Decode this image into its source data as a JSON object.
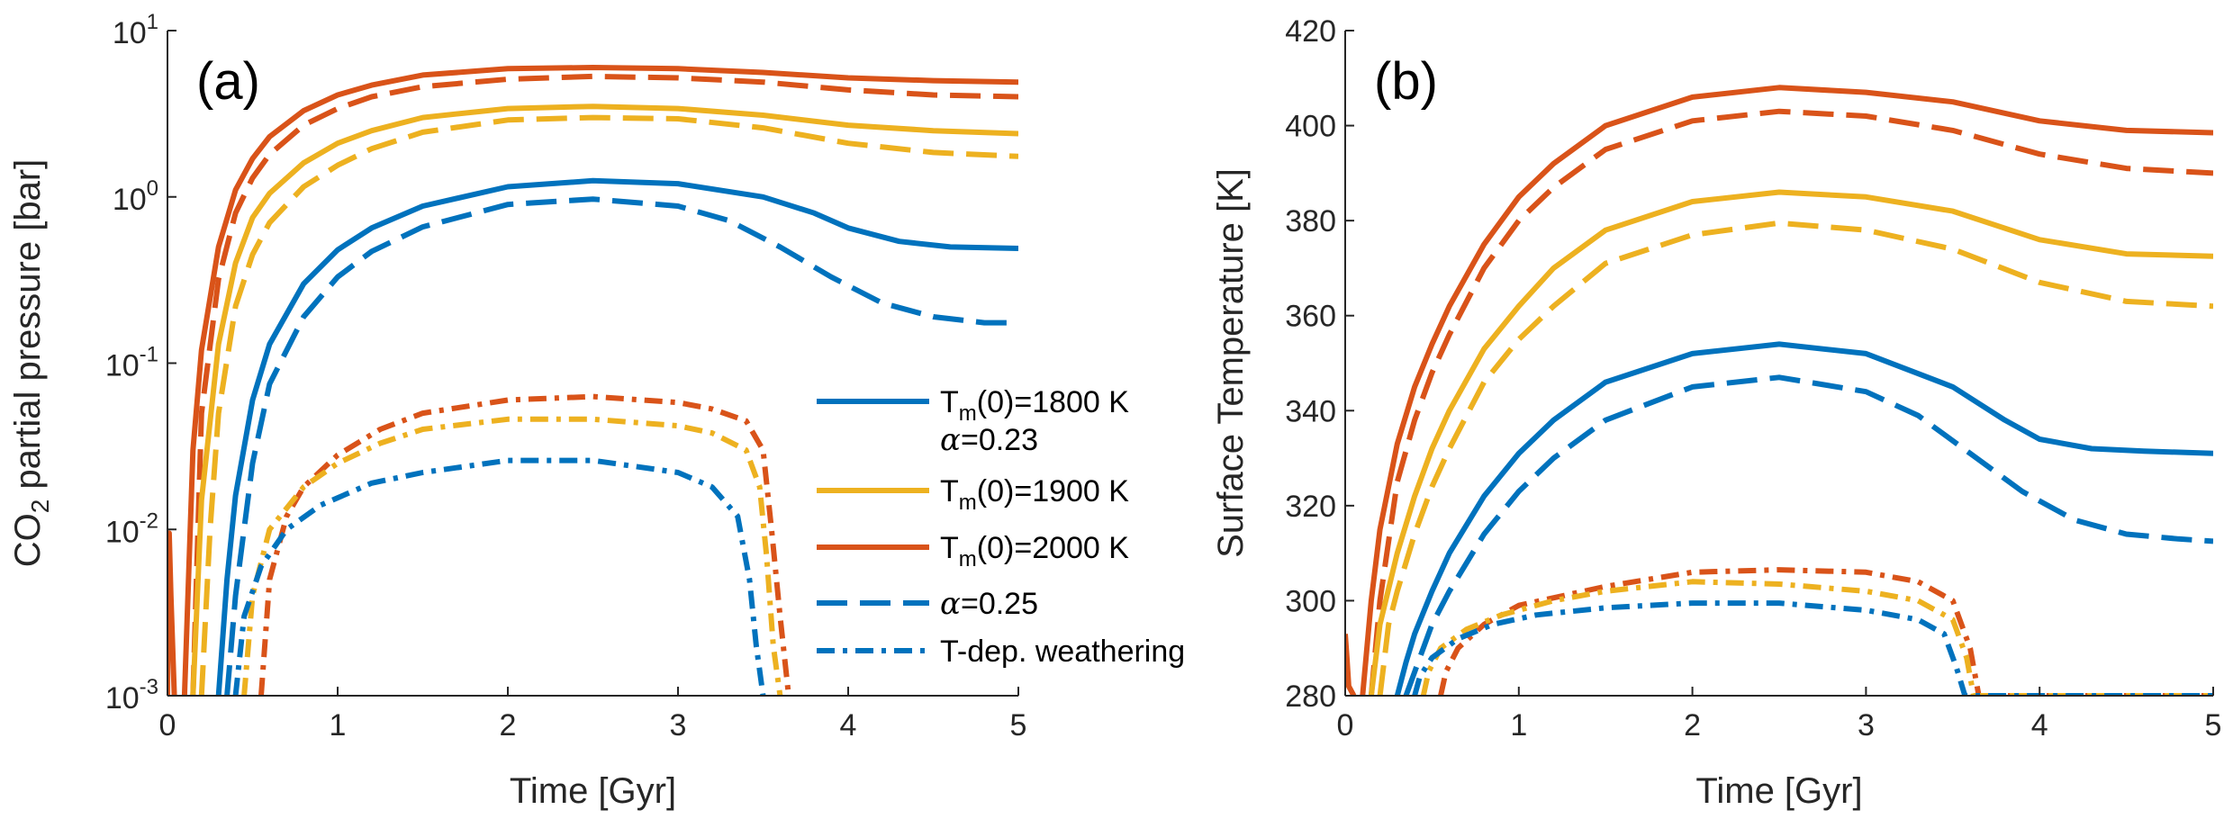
{
  "chart_data": [
    {
      "type": "line",
      "panel_label": "(a)",
      "xlabel": "Time [Gyr]",
      "ylabel": "CO2 partial pressure [bar]",
      "ylabel_main": "CO",
      "ylabel_sub": "2",
      "ylabel_rest": " partial pressure [bar]",
      "xlim": [
        0,
        5
      ],
      "ylim": [
        0.001,
        10
      ],
      "yscale": "log",
      "x_ticks": [
        0,
        1,
        2,
        3,
        4,
        5
      ],
      "x_tick_labels": [
        "0",
        "1",
        "2",
        "3",
        "4",
        "5"
      ],
      "y_ticks": [
        0.001,
        0.01,
        0.1,
        1,
        10
      ],
      "y_tick_labels": [
        {
          "base": "10",
          "exp": "-3"
        },
        {
          "base": "10",
          "exp": "-2"
        },
        {
          "base": "10",
          "exp": "-1"
        },
        {
          "base": "10",
          "exp": "0"
        },
        {
          "base": "10",
          "exp": "1"
        }
      ],
      "legend": {
        "position": "center-right",
        "entries": [
          {
            "style": "solid",
            "color": "#0072BD",
            "lines": [
              {
                "main": "T",
                "sub": "m",
                "rest": "(0)=1800 K"
              },
              {
                "greek": "α",
                "rest": "=0.23"
              }
            ]
          },
          {
            "style": "solid",
            "color": "#EDB120",
            "lines": [
              {
                "main": "T",
                "sub": "m",
                "rest": "(0)=1900 K"
              }
            ]
          },
          {
            "style": "solid",
            "color": "#D95319",
            "lines": [
              {
                "main": "T",
                "sub": "m",
                "rest": "(0)=2000 K"
              }
            ]
          },
          {
            "style": "dashed",
            "color": "#0072BD",
            "lines": [
              {
                "greek": "α",
                "rest": "=0.25"
              }
            ]
          },
          {
            "style": "dashdot",
            "color": "#0072BD",
            "lines": [
              {
                "main": "T-dep. weathering"
              }
            ]
          }
        ]
      },
      "series": [
        {
          "color": "#D95319",
          "style": "solid",
          "x": [
            0.1,
            0.15,
            0.2,
            0.3,
            0.4,
            0.5,
            0.6,
            0.8,
            1.0,
            1.2,
            1.5,
            2.0,
            2.5,
            3.0,
            3.5,
            4.0,
            4.5,
            5.0
          ],
          "y": [
            0.001,
            0.03,
            0.12,
            0.5,
            1.1,
            1.7,
            2.3,
            3.3,
            4.1,
            4.7,
            5.4,
            5.9,
            6.0,
            5.9,
            5.6,
            5.2,
            5.0,
            4.9
          ]
        },
        {
          "color": "#D95319",
          "style": "dashed",
          "x": [
            0.15,
            0.2,
            0.3,
            0.4,
            0.5,
            0.6,
            0.8,
            1.0,
            1.2,
            1.5,
            2.0,
            2.5,
            3.0,
            3.5,
            4.0,
            4.5,
            5.0
          ],
          "y": [
            0.001,
            0.05,
            0.32,
            0.8,
            1.3,
            1.8,
            2.7,
            3.4,
            4.0,
            4.6,
            5.1,
            5.3,
            5.2,
            4.9,
            4.4,
            4.1,
            4.0
          ]
        },
        {
          "color": "#EDB120",
          "style": "solid",
          "x": [
            0.15,
            0.2,
            0.3,
            0.4,
            0.5,
            0.6,
            0.8,
            1.0,
            1.2,
            1.5,
            2.0,
            2.5,
            3.0,
            3.5,
            4.0,
            4.5,
            5.0
          ],
          "y": [
            0.001,
            0.015,
            0.13,
            0.4,
            0.75,
            1.05,
            1.6,
            2.1,
            2.5,
            3.0,
            3.4,
            3.5,
            3.4,
            3.1,
            2.7,
            2.5,
            2.4
          ]
        },
        {
          "color": "#EDB120",
          "style": "dashed",
          "x": [
            0.2,
            0.25,
            0.3,
            0.4,
            0.5,
            0.6,
            0.8,
            1.0,
            1.2,
            1.5,
            2.0,
            2.5,
            3.0,
            3.5,
            4.0,
            4.5,
            5.0
          ],
          "y": [
            0.001,
            0.01,
            0.05,
            0.22,
            0.45,
            0.7,
            1.15,
            1.55,
            1.95,
            2.45,
            2.9,
            3.0,
            2.95,
            2.6,
            2.1,
            1.85,
            1.75
          ]
        },
        {
          "color": "#0072BD",
          "style": "solid",
          "x": [
            0.3,
            0.35,
            0.4,
            0.5,
            0.6,
            0.8,
            1.0,
            1.2,
            1.5,
            2.0,
            2.5,
            3.0,
            3.5,
            3.8,
            4.0,
            4.3,
            4.6,
            5.0
          ],
          "y": [
            0.001,
            0.005,
            0.016,
            0.06,
            0.13,
            0.3,
            0.48,
            0.65,
            0.88,
            1.15,
            1.25,
            1.2,
            1.0,
            0.8,
            0.65,
            0.54,
            0.5,
            0.49
          ]
        },
        {
          "color": "#0072BD",
          "style": "dashed",
          "x": [
            0.35,
            0.4,
            0.5,
            0.6,
            0.8,
            1.0,
            1.2,
            1.5,
            2.0,
            2.5,
            3.0,
            3.3,
            3.6,
            3.9,
            4.2,
            4.5,
            4.8,
            5.0
          ],
          "y": [
            0.001,
            0.004,
            0.025,
            0.075,
            0.19,
            0.33,
            0.47,
            0.66,
            0.9,
            0.97,
            0.88,
            0.72,
            0.5,
            0.33,
            0.23,
            0.19,
            0.175,
            0.175
          ]
        },
        {
          "color": "#D95319",
          "style": "solid",
          "x": [
            0.0,
            0.005,
            0.01,
            0.02,
            0.04
          ],
          "y": [
            0.001,
            0.006,
            0.0095,
            0.004,
            0.001
          ]
        },
        {
          "color": "#D95319",
          "style": "dashdot",
          "x": [
            0.55,
            0.6,
            0.7,
            0.8,
            1.0,
            1.25,
            1.5,
            2.0,
            2.5,
            3.0,
            3.2,
            3.4,
            3.5,
            3.55,
            3.6,
            3.65
          ],
          "y": [
            0.001,
            0.005,
            0.012,
            0.018,
            0.028,
            0.04,
            0.05,
            0.06,
            0.063,
            0.058,
            0.053,
            0.045,
            0.03,
            0.01,
            0.003,
            0.001
          ]
        },
        {
          "color": "#EDB120",
          "style": "dashdot",
          "x": [
            0.45,
            0.5,
            0.6,
            0.8,
            1.0,
            1.25,
            1.5,
            2.0,
            2.5,
            3.0,
            3.2,
            3.4,
            3.48,
            3.52,
            3.56,
            3.6
          ],
          "y": [
            0.001,
            0.004,
            0.01,
            0.018,
            0.025,
            0.033,
            0.04,
            0.046,
            0.046,
            0.042,
            0.038,
            0.03,
            0.018,
            0.007,
            0.002,
            0.001
          ]
        },
        {
          "color": "#0072BD",
          "style": "dashdot",
          "x": [
            0.4,
            0.45,
            0.55,
            0.7,
            0.9,
            1.2,
            1.5,
            2.0,
            2.5,
            3.0,
            3.2,
            3.35,
            3.42,
            3.46,
            3.5
          ],
          "y": [
            0.001,
            0.003,
            0.006,
            0.01,
            0.014,
            0.019,
            0.022,
            0.026,
            0.026,
            0.022,
            0.018,
            0.012,
            0.005,
            0.002,
            0.001
          ]
        }
      ]
    },
    {
      "type": "line",
      "panel_label": "(b)",
      "xlabel": "Time [Gyr]",
      "ylabel": "Surface Temperature [K]",
      "xlim": [
        0,
        5
      ],
      "ylim": [
        280,
        420
      ],
      "yscale": "linear",
      "x_ticks": [
        0,
        1,
        2,
        3,
        4,
        5
      ],
      "x_tick_labels": [
        "0",
        "1",
        "2",
        "3",
        "4",
        "5"
      ],
      "y_ticks": [
        280,
        300,
        320,
        340,
        360,
        380,
        400,
        420
      ],
      "y_tick_labels": [
        "280",
        "300",
        "320",
        "340",
        "360",
        "380",
        "400",
        "420"
      ],
      "series": [
        {
          "color": "#D95319",
          "style": "solid",
          "x": [
            0.1,
            0.15,
            0.2,
            0.3,
            0.4,
            0.5,
            0.6,
            0.8,
            1.0,
            1.2,
            1.5,
            2.0,
            2.5,
            3.0,
            3.5,
            4.0,
            4.5,
            5.0
          ],
          "y": [
            280,
            300,
            315,
            333,
            345,
            354,
            362,
            375,
            385,
            392,
            400,
            406,
            408,
            407,
            405,
            401,
            399,
            398.5
          ]
        },
        {
          "color": "#D95319",
          "style": "dashed",
          "x": [
            0.15,
            0.2,
            0.3,
            0.4,
            0.5,
            0.6,
            0.8,
            1.0,
            1.2,
            1.5,
            2.0,
            2.5,
            3.0,
            3.5,
            4.0,
            4.5,
            5.0
          ],
          "y": [
            280,
            300,
            325,
            338,
            348,
            356,
            370,
            380,
            387,
            395,
            401,
            403,
            402,
            399,
            394,
            391,
            390
          ]
        },
        {
          "color": "#EDB120",
          "style": "solid",
          "x": [
            0.15,
            0.2,
            0.3,
            0.4,
            0.5,
            0.6,
            0.8,
            1.0,
            1.2,
            1.5,
            2.0,
            2.5,
            3.0,
            3.5,
            4.0,
            4.5,
            5.0
          ],
          "y": [
            280,
            295,
            310,
            322,
            332,
            340,
            353,
            362,
            370,
            378,
            384,
            386,
            385,
            382,
            376,
            373,
            372.5
          ]
        },
        {
          "color": "#EDB120",
          "style": "dashed",
          "x": [
            0.2,
            0.25,
            0.3,
            0.4,
            0.5,
            0.6,
            0.8,
            1.0,
            1.2,
            1.5,
            2.0,
            2.5,
            3.0,
            3.5,
            4.0,
            4.5,
            5.0
          ],
          "y": [
            280,
            295,
            302,
            314,
            324,
            332,
            346,
            355,
            362,
            371,
            377,
            379.5,
            378,
            374,
            367,
            363,
            362
          ]
        },
        {
          "color": "#0072BD",
          "style": "solid",
          "x": [
            0.3,
            0.35,
            0.4,
            0.5,
            0.6,
            0.8,
            1.0,
            1.2,
            1.5,
            2.0,
            2.5,
            3.0,
            3.5,
            3.8,
            4.0,
            4.3,
            4.6,
            5.0
          ],
          "y": [
            280,
            287,
            293,
            302,
            310,
            322,
            331,
            338,
            346,
            352,
            354,
            352,
            345,
            338,
            334,
            332,
            331.5,
            331
          ]
        },
        {
          "color": "#0072BD",
          "style": "dashed",
          "x": [
            0.35,
            0.4,
            0.5,
            0.6,
            0.8,
            1.0,
            1.2,
            1.5,
            2.0,
            2.5,
            3.0,
            3.3,
            3.6,
            3.9,
            4.2,
            4.5,
            4.8,
            5.0
          ],
          "y": [
            280,
            285,
            295,
            302,
            314,
            323,
            330,
            338,
            345,
            347,
            344,
            339,
            331,
            323,
            317,
            314,
            313,
            312.5
          ]
        },
        {
          "color": "#D95319",
          "style": "solid",
          "x": [
            0.0,
            0.01,
            0.02,
            0.05
          ],
          "y": [
            293,
            288,
            282,
            280
          ]
        },
        {
          "color": "#D95319",
          "style": "dashdot",
          "x": [
            0.55,
            0.58,
            0.65,
            0.8,
            1.0,
            1.5,
            2.0,
            2.5,
            3.0,
            3.3,
            3.5,
            3.6,
            3.65,
            5.0
          ],
          "y": [
            280,
            285,
            290,
            295,
            299,
            303,
            306,
            306.5,
            306,
            304,
            300,
            290,
            280,
            280
          ]
        },
        {
          "color": "#EDB120",
          "style": "dashdot",
          "x": [
            0.45,
            0.48,
            0.55,
            0.7,
            0.9,
            1.2,
            1.5,
            2.0,
            2.5,
            3.0,
            3.3,
            3.5,
            3.58,
            3.62,
            5.0
          ],
          "y": [
            280,
            285,
            290,
            294,
            297,
            300,
            302,
            304,
            303.5,
            302,
            300,
            296,
            288,
            280,
            280
          ]
        },
        {
          "color": "#0072BD",
          "style": "dashdot",
          "x": [
            0.4,
            0.43,
            0.5,
            0.65,
            0.85,
            1.1,
            1.5,
            2.0,
            2.5,
            3.0,
            3.3,
            3.45,
            3.52,
            3.57,
            5.0
          ],
          "y": [
            280,
            284,
            288,
            292,
            295,
            297,
            298.5,
            299.5,
            299.5,
            298,
            296,
            293,
            286,
            280,
            280
          ]
        }
      ]
    }
  ]
}
